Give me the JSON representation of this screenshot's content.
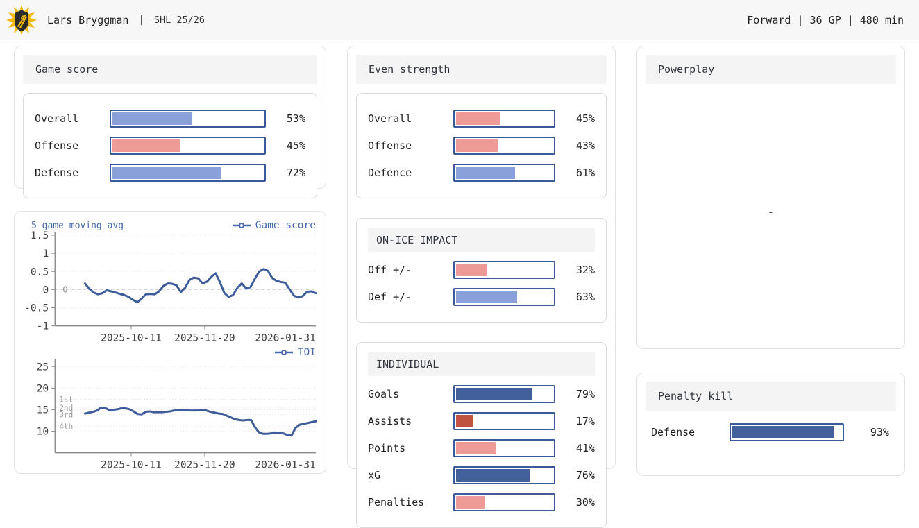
{
  "colors": {
    "bar_border": "#3c5a99",
    "light_blue": "#8aa0da",
    "light_red": "#ee9a97",
    "dark_blue": "#41609c",
    "dark_red": "#c0533f",
    "line_blue": "#3e5c9a",
    "legend_blue": "#4a69ad",
    "logo_yellow": "#f2b90d",
    "logo_dark": "#2a2a2a"
  },
  "header": {
    "logo": "team-crest",
    "player_name": "Lars Bryggman",
    "separator": "|",
    "season": "SHL 25/26",
    "player_info": "Forward | 36 GP | 480 min"
  },
  "cards": {
    "game_score": {
      "title": "Game score",
      "bars": [
        {
          "label": "Overall",
          "value": 53,
          "display": "53%",
          "color": "#8aa0da"
        },
        {
          "label": "Offense",
          "value": 45,
          "display": "45%",
          "color": "#ee9a97"
        },
        {
          "label": "Defense",
          "value": 72,
          "display": "72%",
          "color": "#8aa0da"
        }
      ]
    },
    "even_strength": {
      "title": "Even strength",
      "bars": [
        {
          "label": "Overall",
          "value": 45,
          "display": "45%",
          "color": "#ee9a97"
        },
        {
          "label": "Offense",
          "value": 43,
          "display": "43%",
          "color": "#ee9a97"
        },
        {
          "label": "Defence",
          "value": 61,
          "display": "61%",
          "color": "#8aa0da"
        }
      ],
      "on_ice_impact": {
        "title": "ON-ICE IMPACT",
        "bars": [
          {
            "label": "Off +/-",
            "value": 32,
            "display": "32%",
            "color": "#ee9a97"
          },
          {
            "label": "Def +/-",
            "value": 63,
            "display": "63%",
            "color": "#8aa0da"
          }
        ]
      },
      "individual": {
        "title": "INDIVIDUAL",
        "bars": [
          {
            "label": "Goals",
            "value": 79,
            "display": "79%",
            "color": "#41609c"
          },
          {
            "label": "Assists",
            "value": 17,
            "display": "17%",
            "color": "#c0533f"
          },
          {
            "label": "Points",
            "value": 41,
            "display": "41%",
            "color": "#ee9a97"
          },
          {
            "label": "xG",
            "value": 76,
            "display": "76%",
            "color": "#41609c"
          },
          {
            "label": "Penalties",
            "value": 30,
            "display": "30%",
            "color": "#ee9a97"
          }
        ]
      }
    },
    "powerplay": {
      "title": "Powerplay",
      "empty_value": "-"
    },
    "penalty_kill": {
      "title": "Penalty kill",
      "bars": [
        {
          "label": "Defense",
          "value": 93,
          "display": "93%",
          "color": "#41609c"
        }
      ]
    }
  },
  "chart_data": [
    {
      "type": "line",
      "title": "5 game moving avg",
      "legend": "Game score",
      "line_color": "#3e5c9a",
      "ylim": [
        -1,
        1.5
      ],
      "yticks": [
        1.5,
        1,
        0.5,
        0,
        -0.5,
        -1
      ],
      "zero_annotation": "0",
      "grid": true,
      "legend_position": "top-right",
      "xticklabels": [
        "2025-10-11",
        "2025-11-20",
        "2026-01-31"
      ],
      "y": [
        0.17,
        0.02,
        -0.08,
        -0.13,
        -0.1,
        -0.02,
        -0.05,
        -0.08,
        -0.12,
        -0.15,
        -0.2,
        -0.28,
        -0.35,
        -0.25,
        -0.13,
        -0.12,
        -0.13,
        -0.05,
        0.1,
        0.17,
        0.16,
        0.12,
        -0.07,
        0.05,
        0.27,
        0.33,
        0.31,
        0.17,
        0.22,
        0.35,
        0.45,
        0.2,
        -0.1,
        -0.2,
        -0.15,
        0.05,
        0.17,
        0.03,
        0.07,
        0.3,
        0.5,
        0.57,
        0.52,
        0.32,
        0.24,
        0.21,
        0.19,
        0.0,
        -0.17,
        -0.22,
        -0.18,
        -0.06,
        -0.05,
        -0.1
      ]
    },
    {
      "type": "line",
      "title": "",
      "legend": "TOI",
      "line_color": "#3e5c9a",
      "ylim": [
        5,
        26
      ],
      "yticks": [
        25,
        20,
        15,
        10
      ],
      "grid": true,
      "legend_position": "top-right",
      "reference_lines": [
        {
          "label": "1st",
          "value": 17.4
        },
        {
          "label": "2nd",
          "value": 15.4
        },
        {
          "label": "3rd",
          "value": 13.9
        },
        {
          "label": "4th",
          "value": 11.1
        }
      ],
      "xticklabels": [
        "2025-10-11",
        "2025-11-20",
        "2026-01-31"
      ],
      "y": [
        14.1,
        14.3,
        14.5,
        14.8,
        15.5,
        15.4,
        14.9,
        15.0,
        15.1,
        15.3,
        15.3,
        15.1,
        14.6,
        14.0,
        13.9,
        14.5,
        14.6,
        14.4,
        14.4,
        14.4,
        14.5,
        14.6,
        14.8,
        14.9,
        15.0,
        14.9,
        14.8,
        14.8,
        14.8,
        14.9,
        14.8,
        14.5,
        14.3,
        14.1,
        14.0,
        13.6,
        13.2,
        12.8,
        12.6,
        12.5,
        12.6,
        12.6,
        10.9,
        9.7,
        9.4,
        9.4,
        9.5,
        9.7,
        9.6,
        9.5,
        9.1,
        9.0,
        10.8,
        11.5,
        11.7,
        11.9,
        12.1,
        12.3
      ]
    }
  ]
}
